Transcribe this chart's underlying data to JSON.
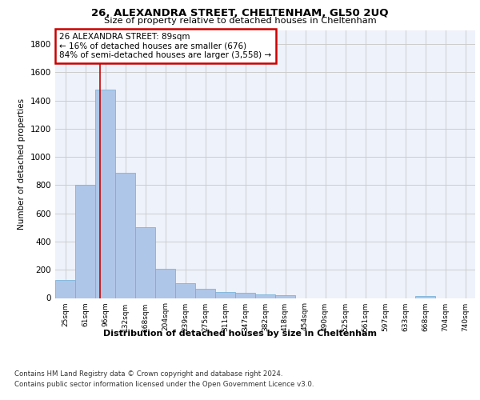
{
  "title": "26, ALEXANDRA STREET, CHELTENHAM, GL50 2UQ",
  "subtitle": "Size of property relative to detached houses in Cheltenham",
  "xlabel": "Distribution of detached houses by size in Cheltenham",
  "ylabel": "Number of detached properties",
  "bar_labels": [
    "25sqm",
    "61sqm",
    "96sqm",
    "132sqm",
    "168sqm",
    "204sqm",
    "239sqm",
    "275sqm",
    "311sqm",
    "347sqm",
    "382sqm",
    "418sqm",
    "454sqm",
    "490sqm",
    "525sqm",
    "561sqm",
    "597sqm",
    "633sqm",
    "668sqm",
    "704sqm",
    "740sqm"
  ],
  "bar_values": [
    125,
    800,
    1480,
    890,
    500,
    205,
    105,
    65,
    40,
    35,
    25,
    20,
    0,
    0,
    0,
    0,
    0,
    0,
    15,
    0,
    0
  ],
  "bar_color": "#aec6e8",
  "bar_edge_color": "#6baed6",
  "red_line_x": 1.72,
  "annotation_line1": "26 ALEXANDRA STREET: 89sqm",
  "annotation_line2": "← 16% of detached houses are smaller (676)",
  "annotation_line3": "84% of semi-detached houses are larger (3,558) →",
  "annotation_box_color": "#ffffff",
  "annotation_box_edge_color": "#cc0000",
  "red_line_color": "#cc0000",
  "ylim": [
    0,
    1900
  ],
  "yticks": [
    0,
    200,
    400,
    600,
    800,
    1000,
    1200,
    1400,
    1600,
    1800
  ],
  "grid_color": "#cccccc",
  "bg_color": "#eef2fb",
  "footer_line1": "Contains HM Land Registry data © Crown copyright and database right 2024.",
  "footer_line2": "Contains public sector information licensed under the Open Government Licence v3.0."
}
